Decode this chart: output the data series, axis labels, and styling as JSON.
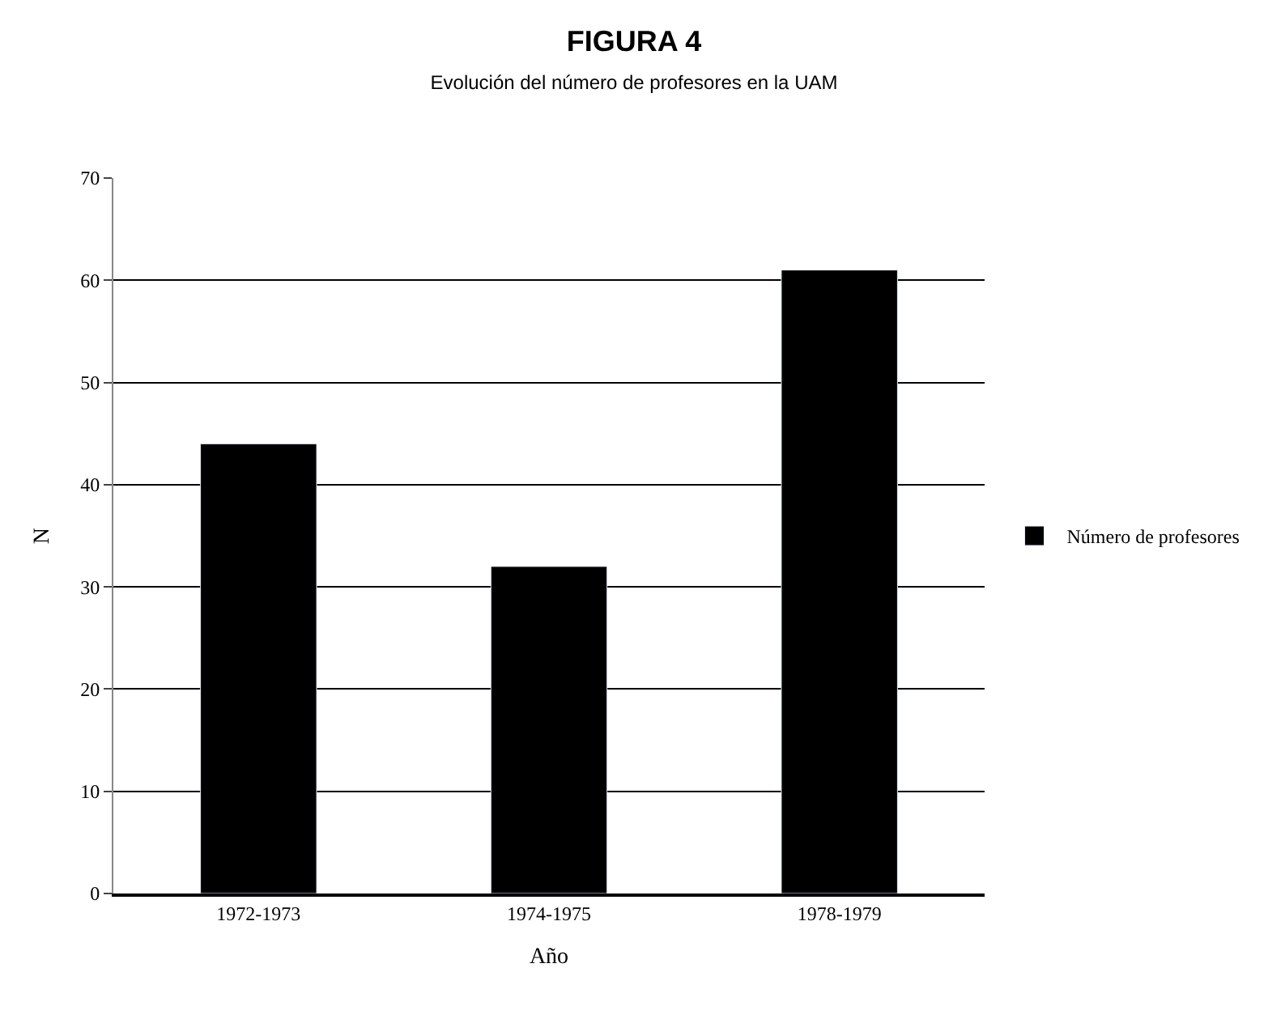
{
  "chart_data": {
    "type": "bar",
    "title": "FIGURA 4",
    "subtitle": "Evolución del número de profesores en la UAM",
    "xlabel": "Año",
    "ylabel": "N",
    "categories": [
      "1972-1973",
      "1974-1975",
      "1978-1979"
    ],
    "series": [
      {
        "name": "Número de profesores",
        "color": "#000000",
        "values": [
          44,
          32,
          61
        ]
      }
    ],
    "ylim": [
      0,
      70
    ],
    "yticks": [
      0,
      10,
      20,
      30,
      40,
      50,
      60,
      70
    ],
    "grid": "y",
    "legend": "right"
  }
}
